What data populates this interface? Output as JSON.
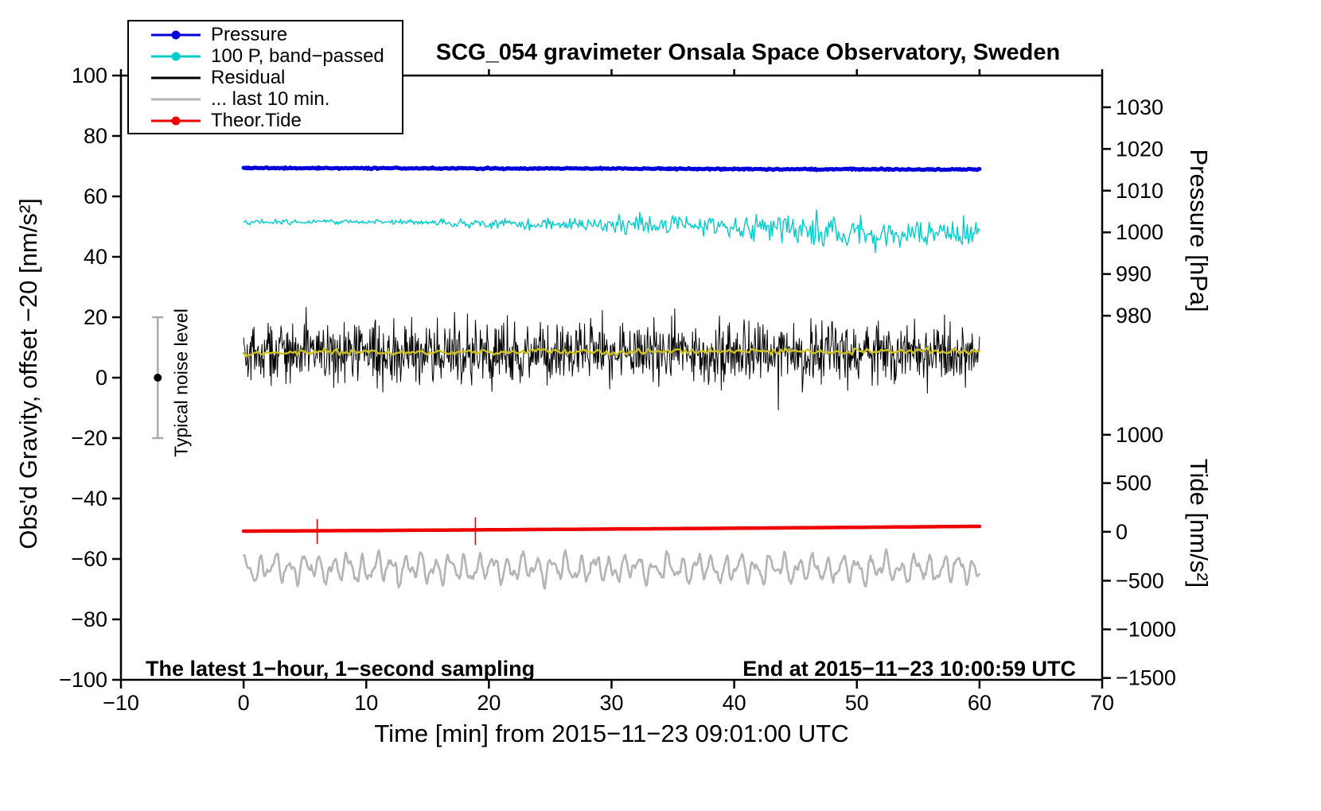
{
  "title": "SCG_054 gravimeter Onsala Space Observatory, Sweden",
  "xlabel": "Time [min] from 2015−11−23 09:01:00 UTC",
  "ylabel": "Obs'd Gravity, offset −20 [nm/s²]",
  "pressure_label": "Pressure [hPa]",
  "tide_label": "Tide [nm/s²]",
  "note_left": "The latest 1−hour, 1−second sampling",
  "note_right": "End at 2015−11−23 10:00:59 UTC",
  "noise_label": "Typical noise level",
  "legend": [
    {
      "label": "Pressure",
      "color": "#0000dd",
      "dot": true
    },
    {
      "label": "100 P, band−passed",
      "color": "#00cccc",
      "dot": true
    },
    {
      "label": "Residual",
      "color": "#000000",
      "dot": false
    },
    {
      "label": "... last 10 min.",
      "color": "#b4b4b4",
      "dot": false
    },
    {
      "label": "Theor.Tide",
      "color": "#ee0000",
      "dot": true
    }
  ],
  "chart_data": {
    "type": "line",
    "title": "SCG_054 gravimeter Onsala Space Observatory, Sweden",
    "xlabel": "Time [min] from 2015−11−23 09:01:00 UTC",
    "ylabel": "Obs'd Gravity, offset −20 [nm/s²]",
    "xlim": [
      -10,
      70
    ],
    "ylim": [
      -100,
      100
    ],
    "grid": false,
    "legend_position": "top-left",
    "x_ticks": [
      {
        "v": -10,
        "label": "−10"
      },
      {
        "v": 0,
        "label": "0"
      },
      {
        "v": 10,
        "label": "10"
      },
      {
        "v": 20,
        "label": "20"
      },
      {
        "v": 30,
        "label": "30"
      },
      {
        "v": 40,
        "label": "40"
      },
      {
        "v": 50,
        "label": "50"
      },
      {
        "v": 60,
        "label": "60"
      },
      {
        "v": 70,
        "label": "70"
      }
    ],
    "y_ticks": [
      {
        "v": 100,
        "label": "100"
      },
      {
        "v": 80,
        "label": "80"
      },
      {
        "v": 60,
        "label": "60"
      },
      {
        "v": 40,
        "label": "40"
      },
      {
        "v": 20,
        "label": "20"
      },
      {
        "v": 0,
        "label": "0"
      },
      {
        "v": -20,
        "label": "−20"
      },
      {
        "v": -40,
        "label": "−40"
      },
      {
        "v": -60,
        "label": "−60"
      },
      {
        "v": -80,
        "label": "−80"
      },
      {
        "v": -100,
        "label": "−100"
      }
    ],
    "pressure_ticks": [
      {
        "g": 89.5,
        "label": "1030"
      },
      {
        "g": 75.7,
        "label": "1020"
      },
      {
        "g": 61.9,
        "label": "1010"
      },
      {
        "g": 48.1,
        "label": "1000"
      },
      {
        "g": 34.3,
        "label": "990"
      },
      {
        "g": 20.5,
        "label": "980"
      }
    ],
    "tide_ticks": [
      {
        "g": -18.9,
        "label": "1000"
      },
      {
        "g": -34.9,
        "label": "500"
      },
      {
        "g": -51.0,
        "label": "0"
      },
      {
        "g": -67.2,
        "label": "−500"
      },
      {
        "g": -83.3,
        "label": "−1000"
      },
      {
        "g": -99.4,
        "label": "−1500"
      }
    ],
    "noise_marker": {
      "x": -7,
      "y": 0,
      "half": 20,
      "cap_half": 7,
      "bar_color": "#aaaaaa",
      "dot_color": "#000000"
    },
    "red_spikes": {
      "color": "#ee0000",
      "width": 1.6,
      "segments": [
        {
          "x": 6.0,
          "y1": -46.8,
          "y2": -55.0
        },
        {
          "x": 18.9,
          "y1": -46.2,
          "y2": -55.4
        }
      ]
    },
    "series": [
      {
        "name": "... last 10 min.",
        "color": "#b4b4b4",
        "width": 2.6,
        "kind": "osc",
        "step": 0.08,
        "seed": 1966,
        "base": -63.2,
        "x_range": [
          0,
          60
        ],
        "noise": 0.45,
        "components": [
          [
            3.1,
            5.3,
            0.4
          ],
          [
            1.7,
            9.1,
            1.7
          ],
          [
            1.1,
            2.15,
            2.6
          ],
          [
            0.7,
            13.7,
            0.9
          ]
        ]
      },
      {
        "name": "Theor.Tide",
        "color": "#ee0000",
        "width": 4.5,
        "kind": "noisy",
        "step": 0.5,
        "seed": 7,
        "noise": 0,
        "anchors": [
          [
            0,
            -50.8
          ],
          [
            12,
            -50.55
          ],
          [
            24,
            -50.25
          ],
          [
            36,
            -49.95
          ],
          [
            48,
            -49.6
          ],
          [
            60,
            -49.2
          ]
        ]
      },
      {
        "name": "100 P, band−passed",
        "color": "#00cccc",
        "width": 1.4,
        "kind": "noisy",
        "step": 0.1,
        "seed": 314,
        "noise_anchors": [
          [
            0,
            0.45
          ],
          [
            14,
            0.5
          ],
          [
            22,
            0.8
          ],
          [
            28,
            1.1
          ],
          [
            33,
            1.6
          ],
          [
            38,
            1.9
          ],
          [
            43,
            2.3
          ],
          [
            48,
            2.5
          ],
          [
            60,
            2.6
          ]
        ],
        "anchors": [
          [
            0,
            51.2
          ],
          [
            6,
            51.7
          ],
          [
            12,
            51.6
          ],
          [
            18,
            51.0
          ],
          [
            24,
            50.7
          ],
          [
            30,
            50.4
          ],
          [
            36,
            50.6
          ],
          [
            42,
            49.4
          ],
          [
            48,
            48.4
          ],
          [
            54,
            47.8
          ],
          [
            60,
            47.7
          ]
        ]
      },
      {
        "name": "Residual",
        "color": "#000000",
        "width": 1,
        "kind": "noisy",
        "step": 0.05,
        "seed": 42,
        "noise": 5.0,
        "spike_prob": 0.006,
        "spike_scale": 2.0,
        "anchors": [
          [
            0,
            8.2
          ],
          [
            60,
            8.2
          ]
        ]
      },
      {
        "name": "Residual smoothed",
        "color": "#cfc21d",
        "width": 2.4,
        "kind": "noisy",
        "step": 0.2,
        "seed": 99,
        "noise": 0.45,
        "anchors": [
          [
            0,
            7.9
          ],
          [
            8,
            8.6
          ],
          [
            16,
            8.2
          ],
          [
            24,
            8.8
          ],
          [
            32,
            8.4
          ],
          [
            40,
            8.9
          ],
          [
            48,
            8.5
          ],
          [
            56,
            8.9
          ],
          [
            60,
            8.7
          ]
        ]
      },
      {
        "name": "Pressure",
        "color": "#0000dd",
        "width": 5,
        "kind": "noisy",
        "step": 0.1,
        "seed": 5,
        "noise": 0.12,
        "anchors": [
          [
            0,
            69.4
          ],
          [
            15,
            69.3
          ],
          [
            30,
            69.2
          ],
          [
            45,
            69.0
          ],
          [
            60,
            68.9
          ]
        ]
      }
    ]
  }
}
